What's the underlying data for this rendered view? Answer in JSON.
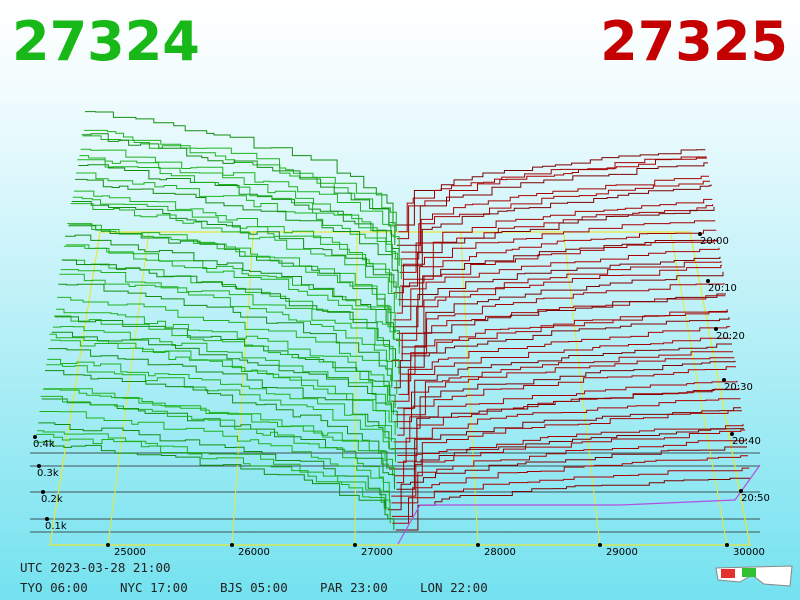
{
  "bid": "27324",
  "ask": "27325",
  "price_axis": [
    "25000",
    "26000",
    "27000",
    "28000",
    "29000",
    "30000"
  ],
  "volume_axis": [
    "0.4k",
    "0.3k",
    "0.2k",
    "0.1k"
  ],
  "time_axis": [
    "20:00",
    "20:10",
    "20:20",
    "20:30",
    "20:40",
    "20:50"
  ],
  "footer": {
    "utc": "UTC 2023-03-28 21:00",
    "cities": [
      "TYO 06:00",
      "NYC 17:00",
      "BJS 05:00",
      "PAR 23:00",
      "LON 22:00"
    ]
  }
}
